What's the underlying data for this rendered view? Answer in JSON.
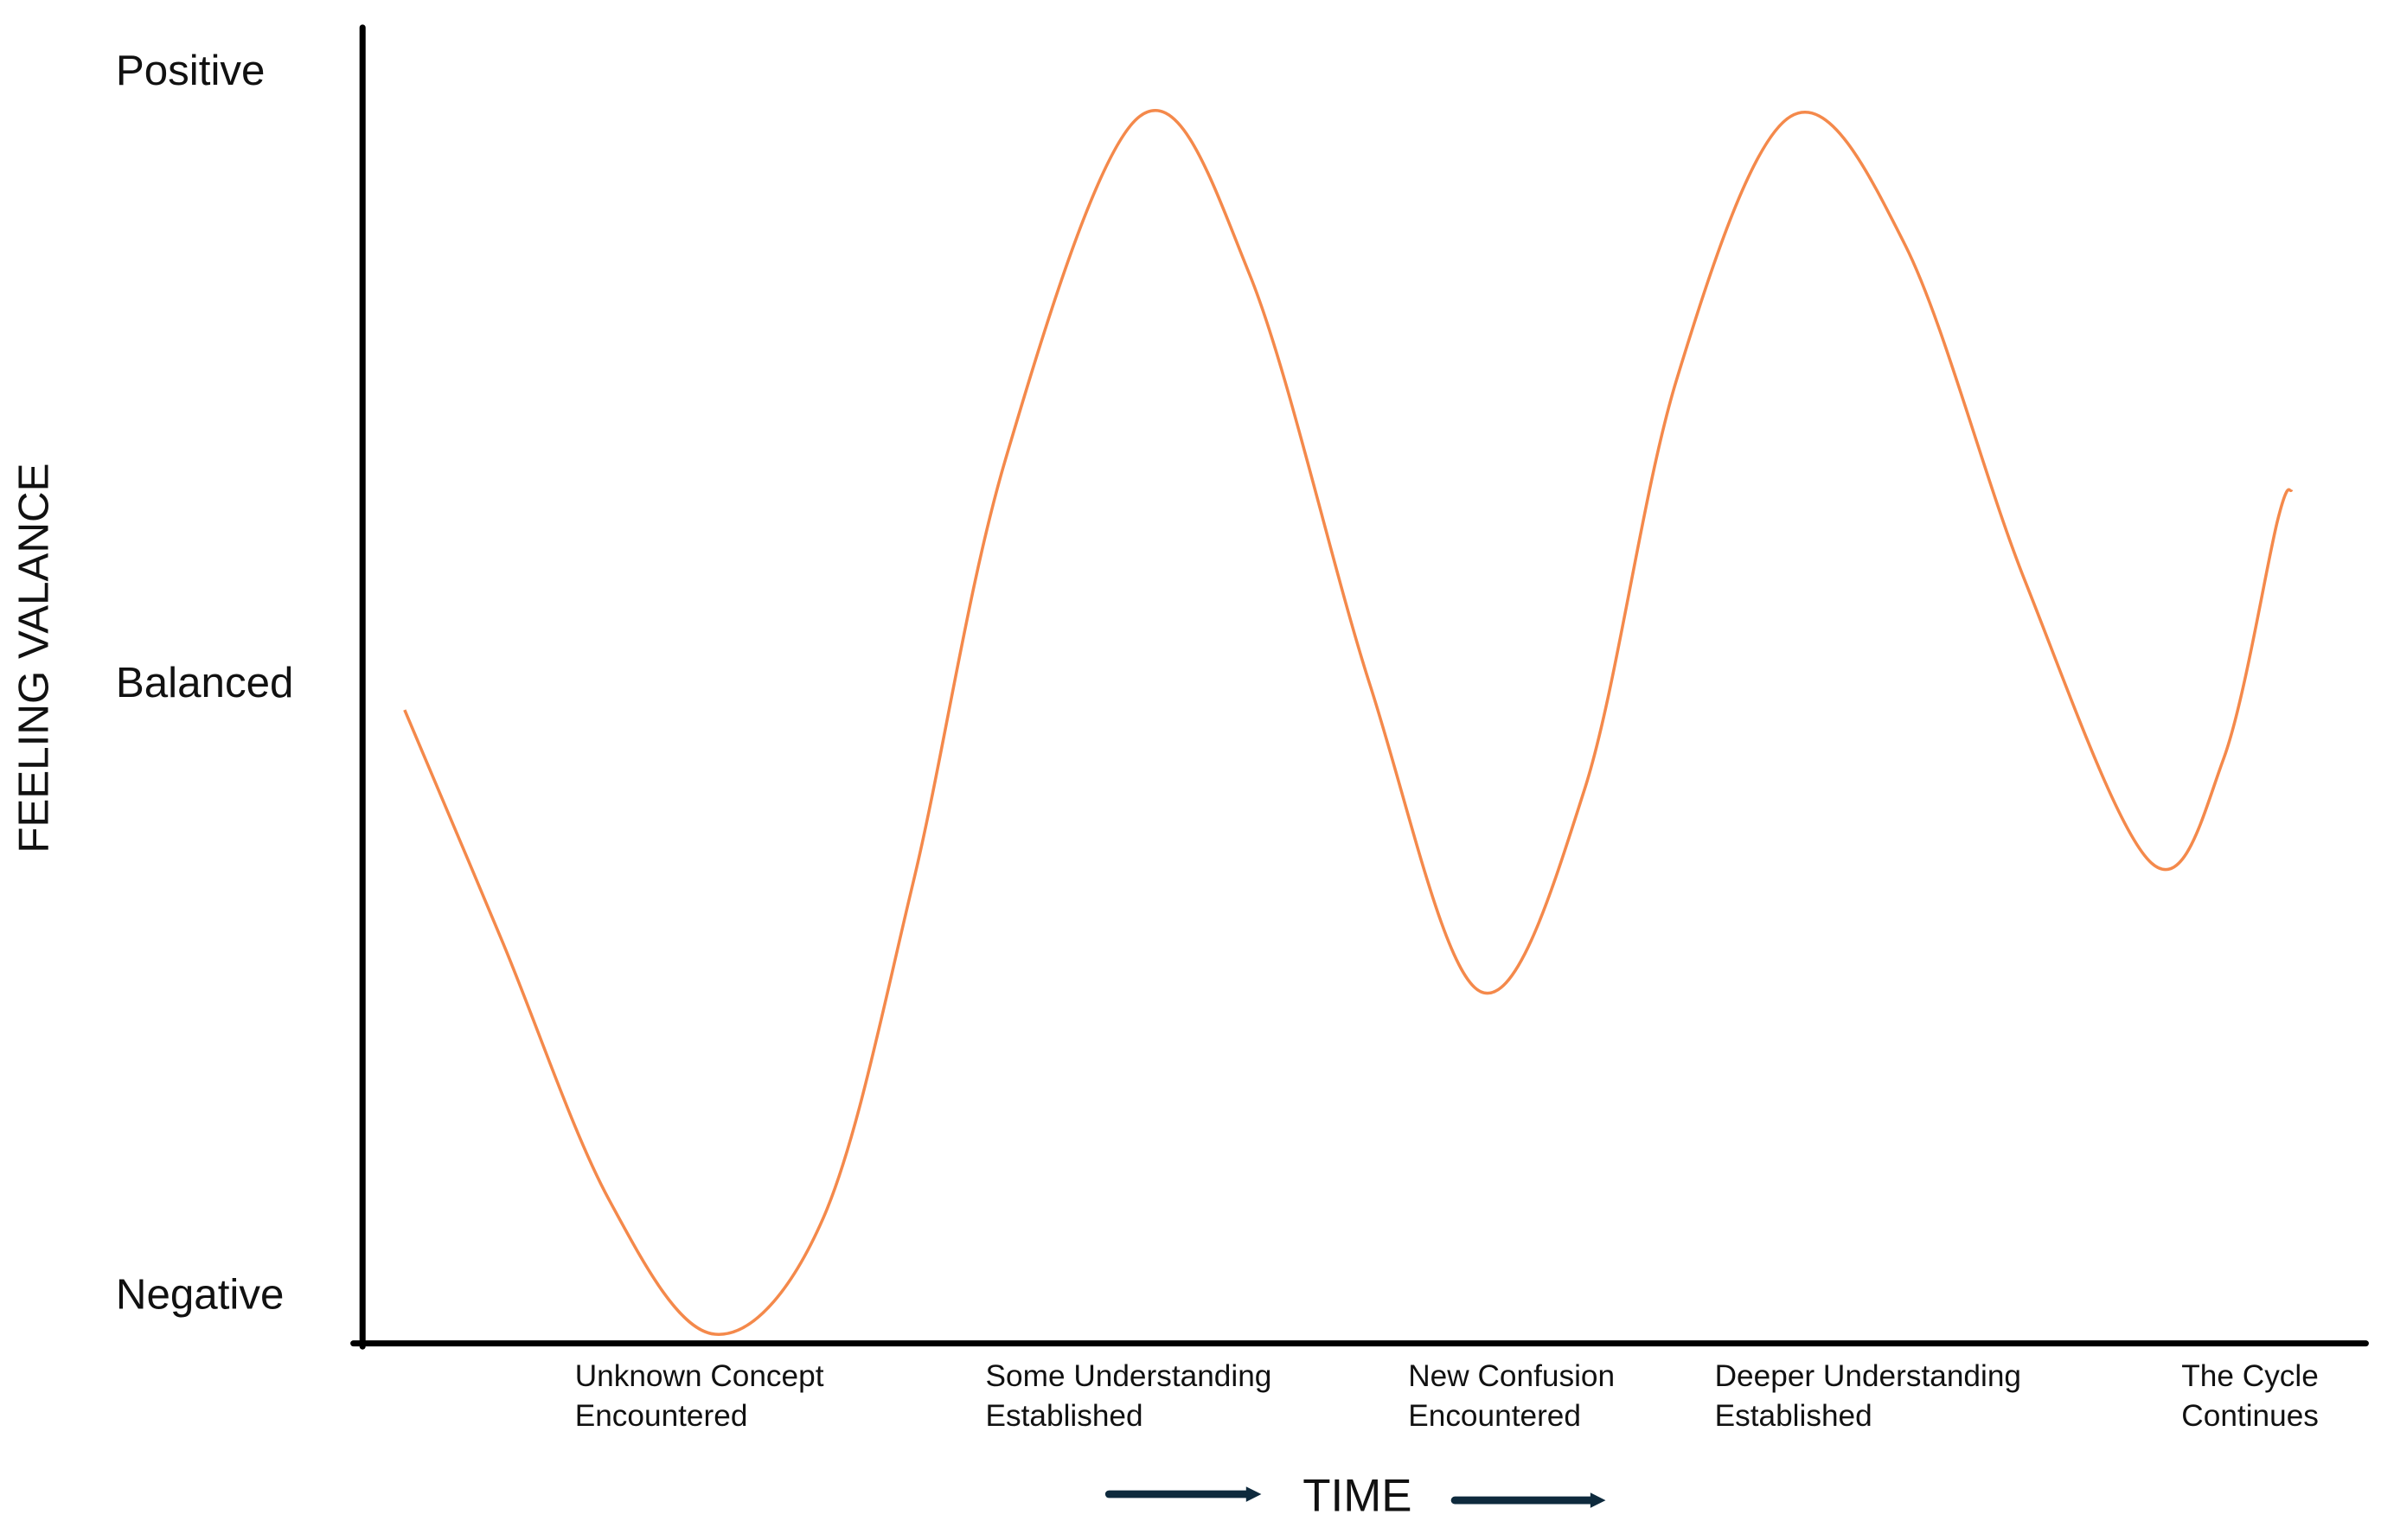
{
  "chart_data": {
    "type": "line",
    "y_label": "FEELING VALANCE",
    "x_label": "TIME",
    "color": "#f4894b",
    "xlim": [
      0,
      100
    ],
    "ylim": [
      -1.075,
      1.075
    ],
    "yticks": [
      {
        "value": 1,
        "label": "Positive"
      },
      {
        "value": 0,
        "label": "Balanced"
      },
      {
        "value": -1,
        "label": "Negative"
      }
    ],
    "xticks": [
      {
        "value": 10.6,
        "label": "Unknown Concept\nEncountered"
      },
      {
        "value": 31.1,
        "label": "Some Understanding\nEstablished"
      },
      {
        "value": 52.2,
        "label": "New Confusion\nEncountered"
      },
      {
        "value": 67.5,
        "label": "Deeper Understanding\nEstablished"
      },
      {
        "value": 90.8,
        "label": "The Cycle\nContinues"
      }
    ],
    "x": [
      2.1,
      7.0,
      12.3,
      17.6,
      23.0,
      27.5,
      32.1,
      38.8,
      44.3,
      50.3,
      55.8,
      61.0,
      65.6,
      71.3,
      77.0,
      83.0,
      89.3,
      92.9,
      95.6,
      96.3
    ],
    "values": [
      -0.04,
      -0.42,
      -0.84,
      -1.06,
      -0.87,
      -0.32,
      0.37,
      0.93,
      0.67,
      0.0,
      -0.5,
      -0.17,
      0.5,
      0.93,
      0.72,
      0.17,
      -0.29,
      -0.12,
      0.27,
      0.32
    ]
  }
}
